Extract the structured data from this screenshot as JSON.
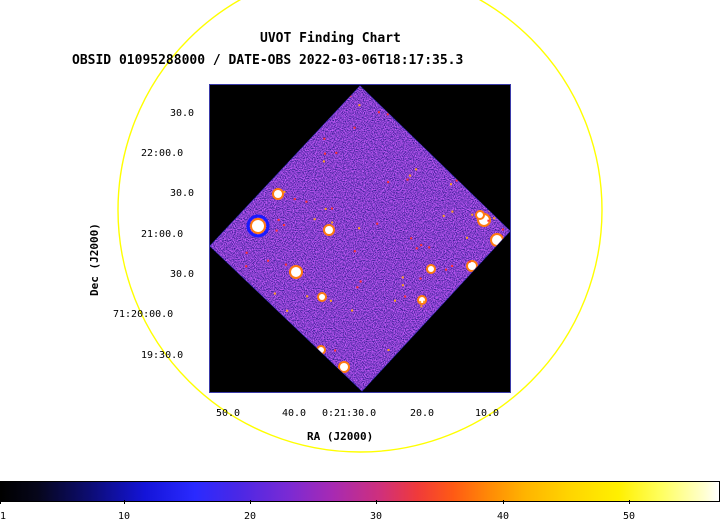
{
  "header": {
    "title": "UVOT Finding Chart",
    "subtitle": "OBSID 01095288000 / DATE-OBS 2022-03-06T18:17:35.3"
  },
  "axes": {
    "xlabel": "RA (J2000)",
    "ylabel": "Dec (J2000)",
    "x_ticks": [
      "50.0",
      "40.0",
      "0:21:30.0",
      "20.0",
      "10.0"
    ],
    "y_ticks": [
      "30.0",
      "22:00.0",
      "30.0",
      "21:00.0",
      "30.0",
      "71:20:00.0",
      "19:30.0"
    ]
  },
  "colorbar": {
    "labels": [
      "1",
      "10",
      "20",
      "30",
      "40",
      "50"
    ],
    "colors": [
      "#000000",
      "#1414d8",
      "#a62ab4",
      "#f03a3a",
      "#ffd400",
      "#ffffff"
    ]
  },
  "colors": {
    "fov_circle": "#ffff00",
    "frame_border": "#3a3aa8"
  }
}
